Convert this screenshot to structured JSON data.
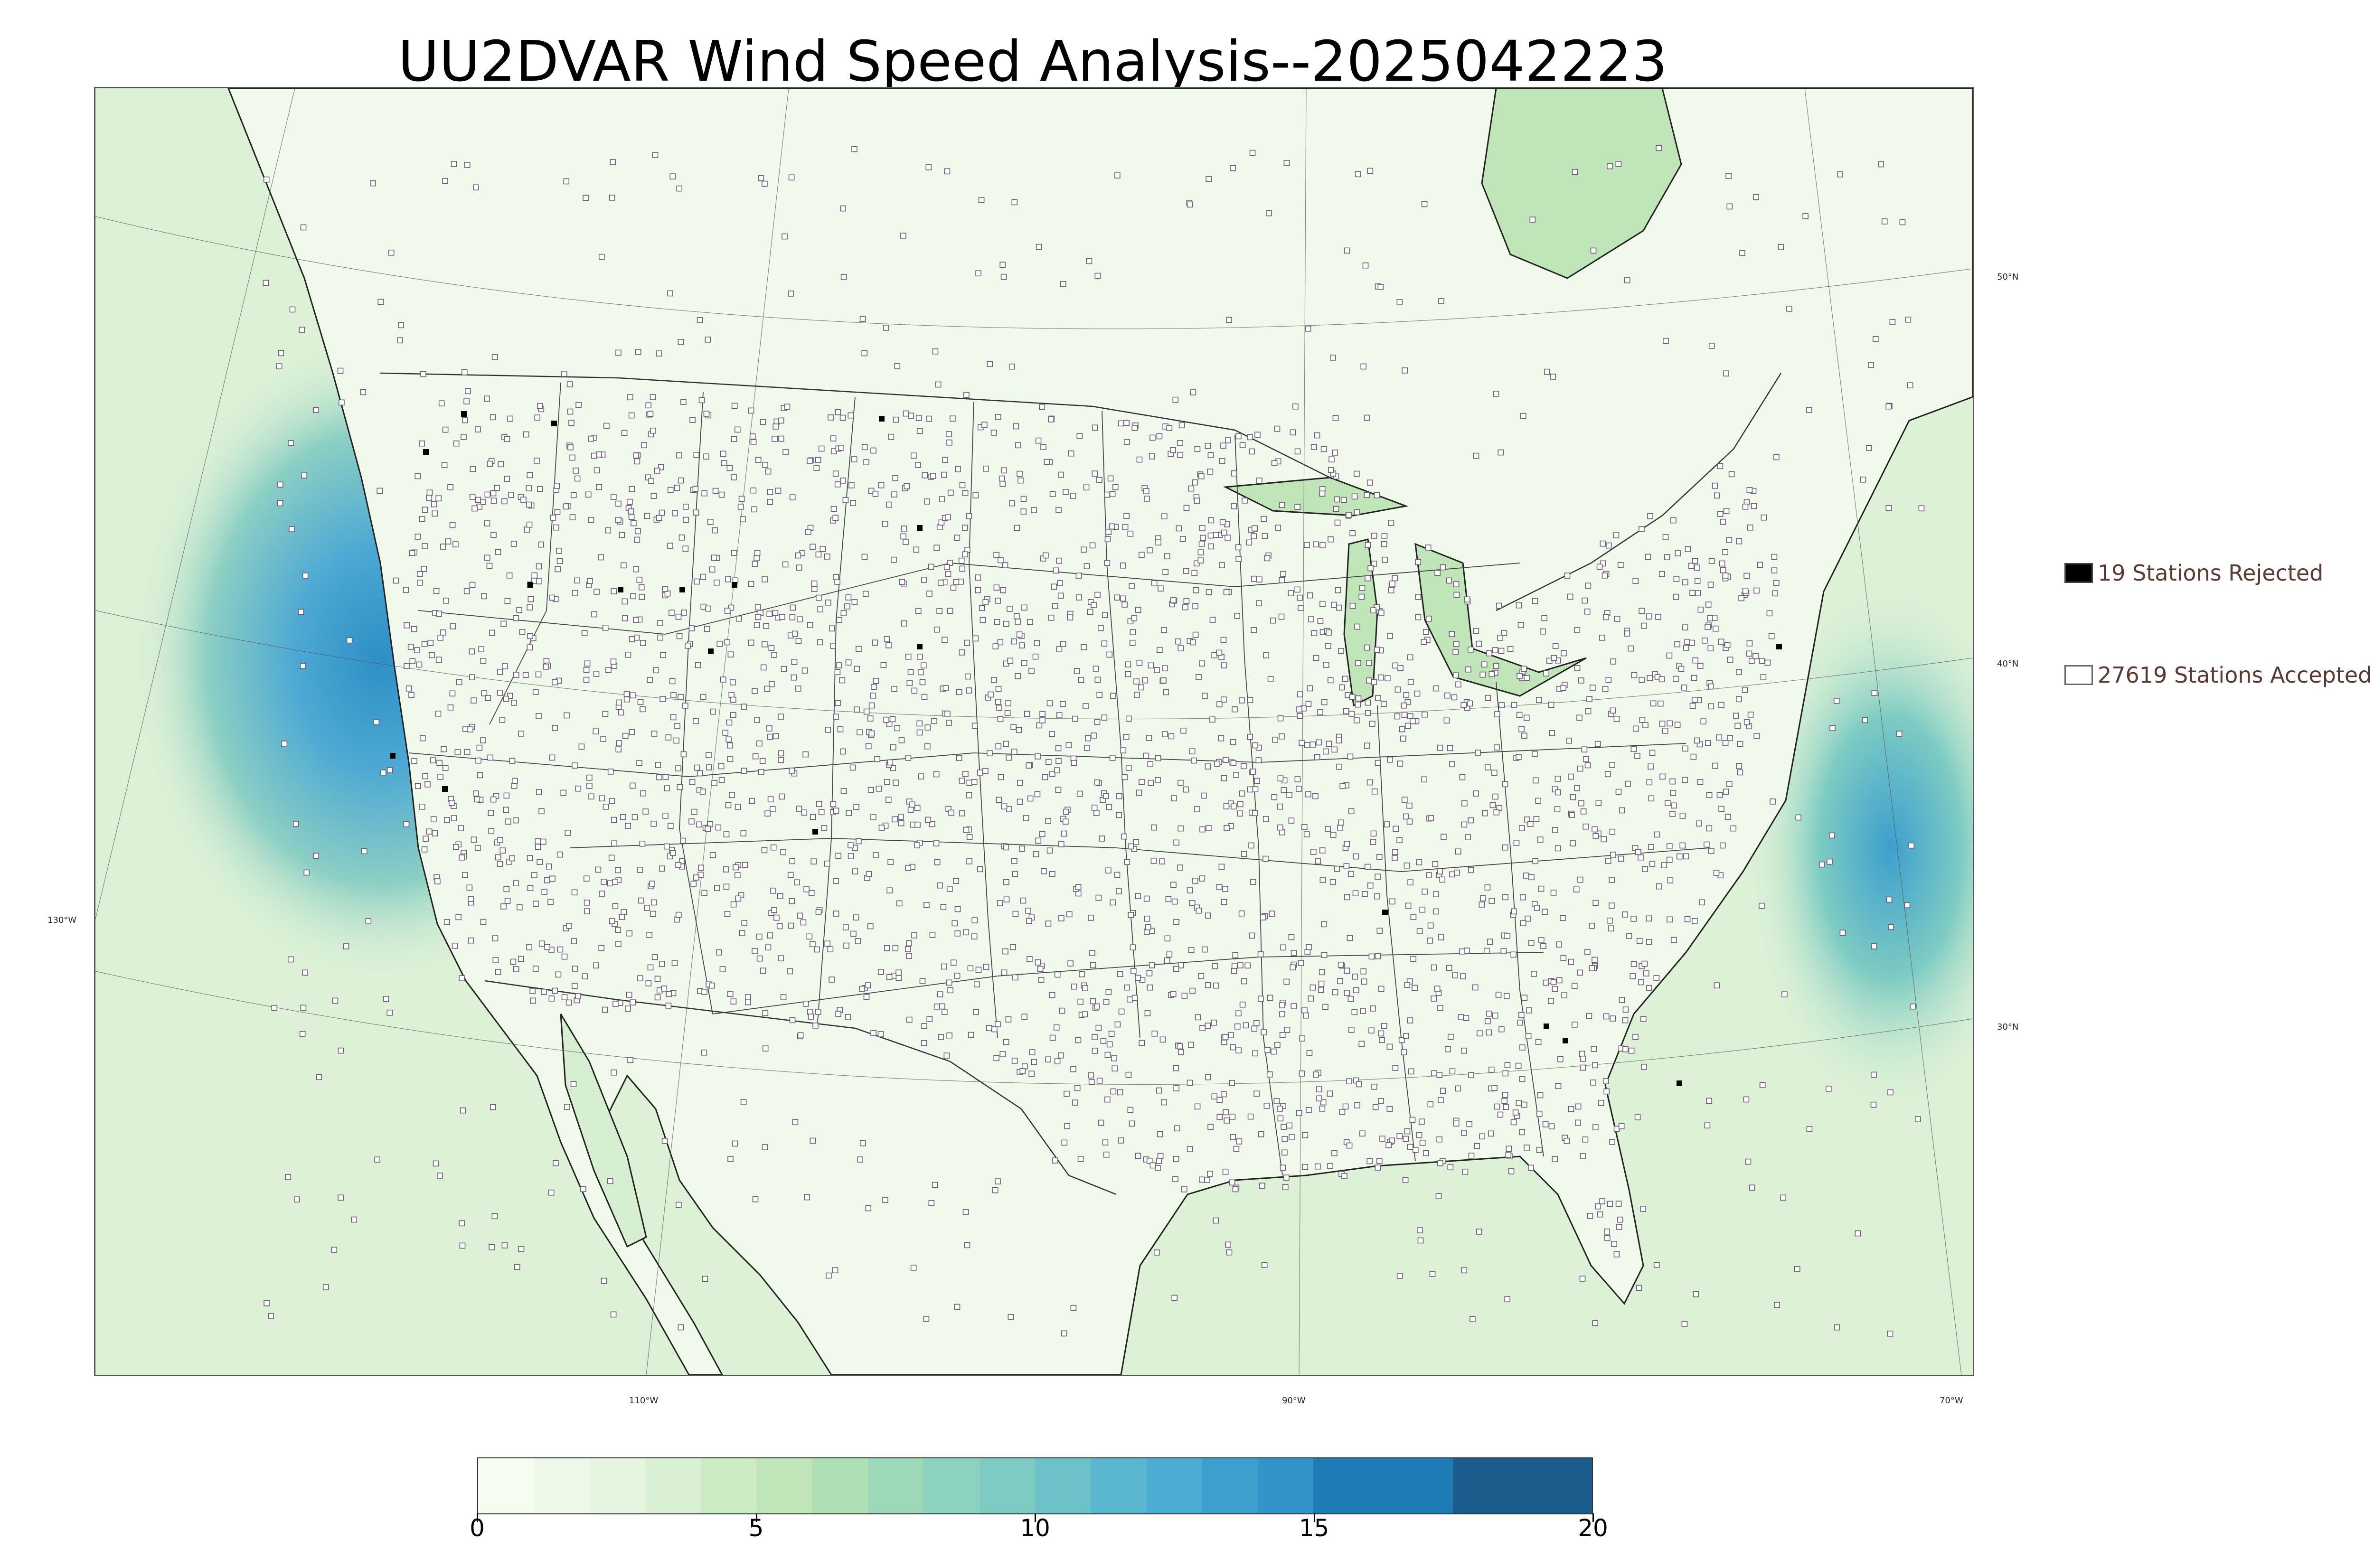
{
  "title": "UU2DVAR Wind Speed Analysis--2025042223",
  "map": {
    "longitude_labels": [
      {
        "text": "110°W",
        "lon": -110
      },
      {
        "text": "90°W",
        "lon": -90
      },
      {
        "text": "70°W",
        "lon": -70
      }
    ],
    "left_labels": [
      {
        "text": "130°W",
        "lon": -130
      }
    ],
    "latitude_labels": [
      {
        "text": "50°N",
        "lat": 50
      },
      {
        "text": "40°N",
        "lat": 40
      },
      {
        "text": "30°N",
        "lat": 30
      }
    ],
    "colors": {
      "ocean_calm": "#e9f6e4",
      "ocean_windy": "#2d8fc6",
      "land": "#f2faee",
      "station_accepted_fill": "#ffffff",
      "station_accepted_edge": "#6a5a72",
      "station_rejected": "#000000",
      "boundary": "#333333"
    }
  },
  "legend": {
    "rejected": {
      "label": "19 Stations Rejected",
      "swatch": "#000000"
    },
    "accepted": {
      "label": "27619 Stations Accepted",
      "swatch": "#ffffff"
    }
  },
  "colorbar": {
    "min": 0,
    "max": 20,
    "ticks": [
      {
        "value": 0,
        "label": "0"
      },
      {
        "value": 5,
        "label": "5"
      },
      {
        "value": 10,
        "label": "10"
      },
      {
        "value": 15,
        "label": "15"
      },
      {
        "value": 20,
        "label": "20"
      }
    ],
    "segments": [
      {
        "from": 0,
        "to": 1,
        "color": "#f7fcf0"
      },
      {
        "from": 1,
        "to": 2,
        "color": "#eef8e8"
      },
      {
        "from": 2,
        "to": 3,
        "color": "#e5f5e0"
      },
      {
        "from": 3,
        "to": 4,
        "color": "#daf0d4"
      },
      {
        "from": 4,
        "to": 5,
        "color": "#cdebc5"
      },
      {
        "from": 5,
        "to": 6,
        "color": "#bfe5b9"
      },
      {
        "from": 6,
        "to": 7,
        "color": "#ade0b5"
      },
      {
        "from": 7,
        "to": 8,
        "color": "#9dd9b8"
      },
      {
        "from": 8,
        "to": 9,
        "color": "#8dd2bf"
      },
      {
        "from": 9,
        "to": 10,
        "color": "#7dcbc3"
      },
      {
        "from": 10,
        "to": 11,
        "color": "#6cc2c8"
      },
      {
        "from": 11,
        "to": 12,
        "color": "#5bb7d0"
      },
      {
        "from": 12,
        "to": 13,
        "color": "#4badd3"
      },
      {
        "from": 13,
        "to": 14,
        "color": "#3d9fcd"
      },
      {
        "from": 14,
        "to": 15,
        "color": "#3394c9"
      },
      {
        "from": 15,
        "to": 17.5,
        "color": "#1f7bb6"
      },
      {
        "from": 17.5,
        "to": 20,
        "color": "#1a5c8c"
      }
    ]
  }
}
